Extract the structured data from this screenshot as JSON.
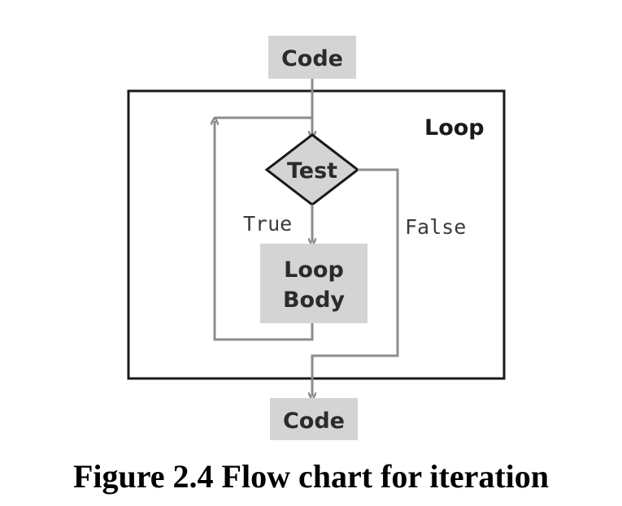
{
  "nodes": {
    "code_top": "Code",
    "test": "Test",
    "loop_body_line1": "Loop",
    "loop_body_line2": "Body",
    "code_bottom": "Code"
  },
  "loop_label": "Loop",
  "edge_labels": {
    "true": "True",
    "false": "False"
  },
  "caption": "Figure 2.4 Flow chart for iteration",
  "colors": {
    "box_fill": "#d4d4d4",
    "arrow": "#8c8c8c",
    "frame": "#1a1a1a",
    "diamond_fill": "#d4d4d4",
    "diamond_stroke": "#1a1a1a"
  }
}
